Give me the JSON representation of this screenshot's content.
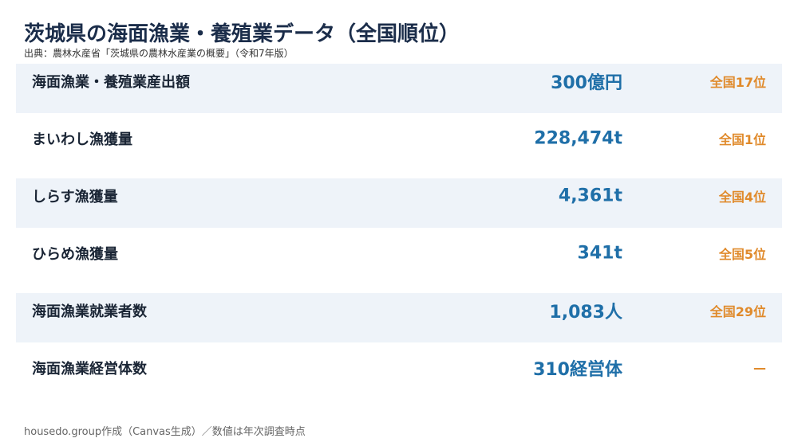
{
  "header": {
    "title": "茨城県の海面漁業・養殖業データ（全国順位）",
    "source": "出典：農林水産省「茨城県の農林水産業の概要」（令和7年版）"
  },
  "table": {
    "rows": [
      [
        "海面漁業・養殖業産出額",
        "300億円",
        "全国17位"
      ],
      [
        "まいわし漁獲量",
        "228,474t",
        "全国1位"
      ],
      [
        "しらす漁獲量",
        "4,361t",
        "全国4位"
      ],
      [
        "ひらめ漁獲量",
        "341t",
        "全国5位"
      ],
      [
        "海面漁業就業者数",
        "1,083人",
        "全国29位"
      ],
      [
        "海面漁業経営体数",
        "310経営体",
        "—"
      ]
    ]
  },
  "footer": "housedo.group作成（Canvas生成）／数値は年次調査時点"
}
